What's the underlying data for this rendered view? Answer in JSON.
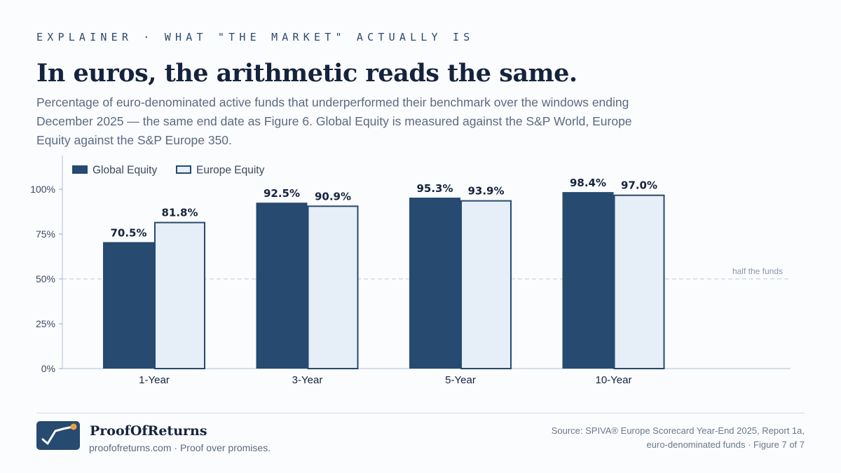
{
  "header": {
    "kicker": "EXPLAINER · WHAT \"THE MARKET\" ACTUALLY IS",
    "title": "In euros, the arithmetic reads the same.",
    "subtitle": "Percentage of euro-denominated active funds that underperformed their benchmark over the windows ending December 2025 — the same end date as Figure 6. Global Equity is measured against the S&P World, Europe Equity against the S&P Europe 350."
  },
  "chart_data": {
    "type": "bar",
    "categories": [
      "1-Year",
      "3-Year",
      "5-Year",
      "10-Year"
    ],
    "series": [
      {
        "name": "Global Equity",
        "values": [
          70.5,
          92.5,
          95.3,
          98.4
        ],
        "value_labels": [
          "70.5%",
          "92.5%",
          "95.3%",
          "98.4%"
        ],
        "color": "#264a70"
      },
      {
        "name": "Europe Equity",
        "values": [
          81.8,
          90.9,
          93.9,
          97.0
        ],
        "value_labels": [
          "81.8%",
          "90.9%",
          "93.9%",
          "97.0%"
        ],
        "color": "#e6eef8",
        "stroke": "#264a70"
      }
    ],
    "ylim": [
      0,
      100
    ],
    "yticks": [
      0,
      25,
      50,
      75,
      100
    ],
    "ytick_labels": [
      "0%",
      "25%",
      "50%",
      "75%",
      "100%"
    ],
    "reference_line": {
      "value": 50,
      "label": "half the funds"
    },
    "legend": "top-left",
    "grid": false
  },
  "footer": {
    "brand": "ProofOfReturns",
    "tagline": "proofofreturns.com · Proof over promises.",
    "source_line1": "Source: SPIVA® Europe Scorecard Year-End 2025, Report 1a,",
    "source_line2": "euro-denominated funds · Figure 7 of 7"
  },
  "colors": {
    "navy": "#264a70",
    "light_fill": "#e6eef8",
    "accent": "#e8a13a"
  },
  "icons": {
    "logo": "checkmark-chart-logo-icon"
  }
}
